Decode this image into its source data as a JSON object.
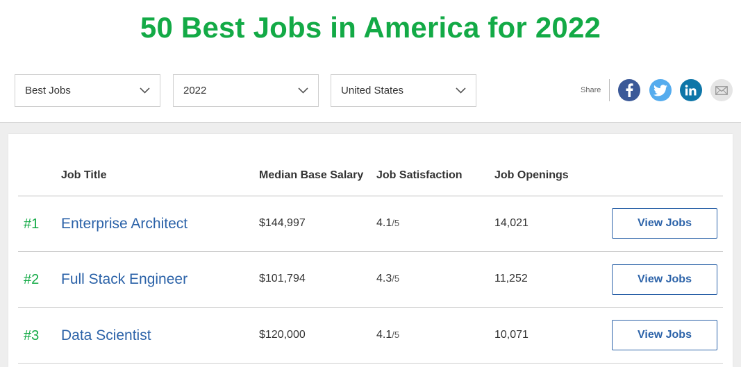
{
  "page": {
    "title": "50 Best Jobs in America for 2022"
  },
  "filters": [
    {
      "value": "Best Jobs"
    },
    {
      "value": "2022"
    },
    {
      "value": "United States"
    }
  ],
  "share": {
    "label": "Share"
  },
  "colors": {
    "accent_green": "#13aa46",
    "link_blue": "#2b62a8",
    "facebook": "#3b5998",
    "twitter": "#55acee",
    "linkedin": "#0e76a8"
  },
  "table": {
    "headers": {
      "job_title": "Job Title",
      "salary": "Median Base Salary",
      "satisfaction": "Job Satisfaction",
      "openings": "Job Openings"
    },
    "rows": [
      {
        "rank": "#1",
        "title": "Enterprise Architect",
        "salary": "$144,997",
        "satisfaction": "4.1",
        "satisfaction_max": "/5",
        "openings": "14,021",
        "button": "View Jobs"
      },
      {
        "rank": "#2",
        "title": "Full Stack Engineer",
        "salary": "$101,794",
        "satisfaction": "4.3",
        "satisfaction_max": "/5",
        "openings": "11,252",
        "button": "View Jobs"
      },
      {
        "rank": "#3",
        "title": "Data Scientist",
        "salary": "$120,000",
        "satisfaction": "4.1",
        "satisfaction_max": "/5",
        "openings": "10,071",
        "button": "View Jobs"
      }
    ]
  }
}
